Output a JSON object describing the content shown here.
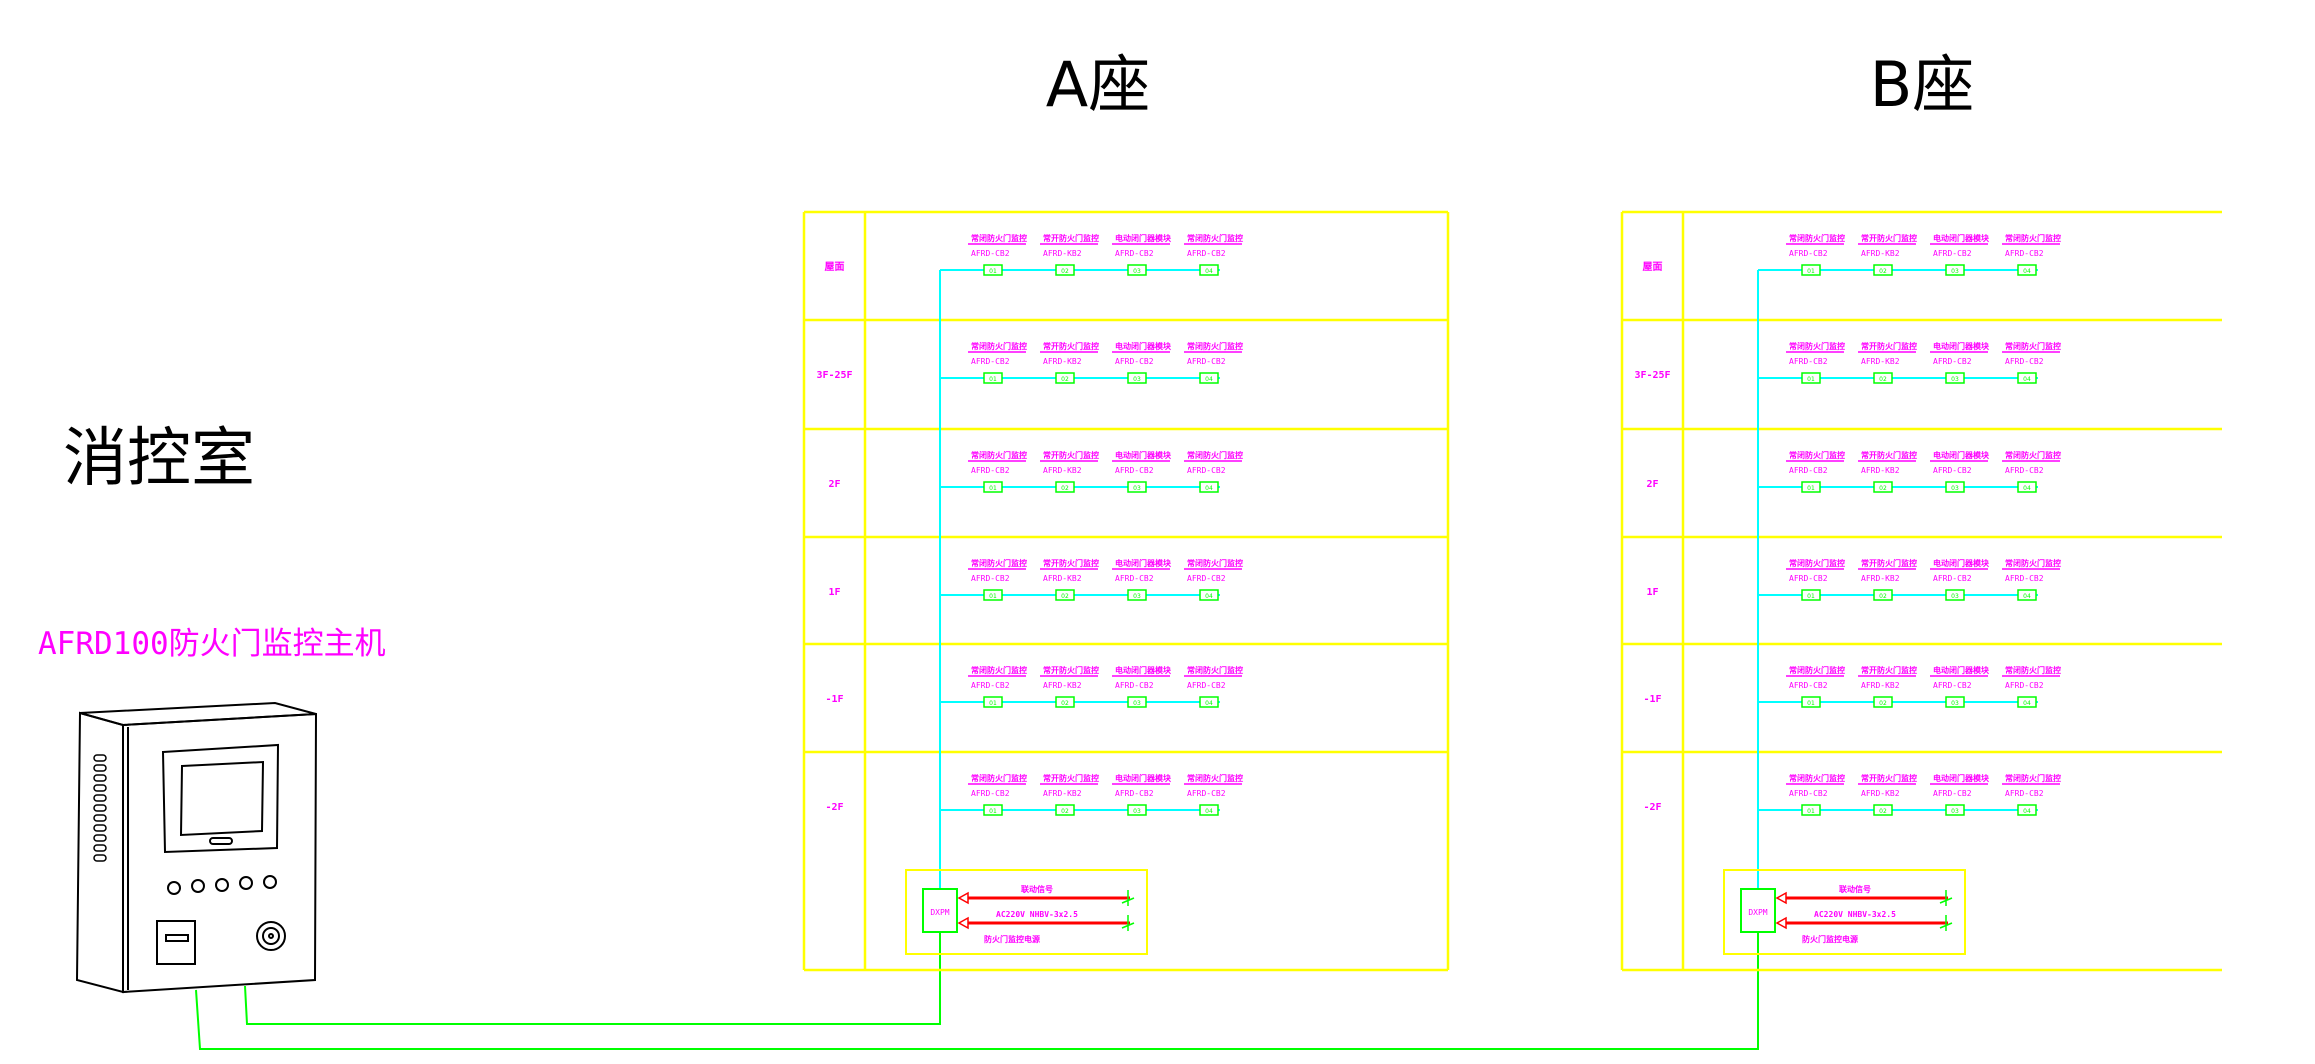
{
  "titles": {
    "building_a": "A座",
    "building_b": "B座",
    "control_room": "消控室",
    "host_name": "AFRD100防火门监控主机"
  },
  "colors": {
    "grid": "#ffff00",
    "bus": "#00ffff",
    "module": "#00ff00",
    "text": "#ff00ff",
    "power_line": "#ff0000",
    "cable": "#00ff00"
  },
  "buildings": [
    {
      "id": "a",
      "floors": [
        "屋面",
        "3F-25F",
        "2F",
        "1F",
        "-1F",
        "-2F"
      ],
      "devices": [
        {
          "name": "常闭防火门监控",
          "model": "AFRD-CB2",
          "code": "01"
        },
        {
          "name": "常开防火门监控",
          "model": "AFRD-KB2",
          "code": "02"
        },
        {
          "name": "电动闭门器模块",
          "model": "AFRD-CB2",
          "code": "03"
        },
        {
          "name": "常闭防火门监控",
          "model": "AFRD-CB2",
          "code": "04"
        }
      ],
      "power": {
        "module_label": "DXPM",
        "line1_label": "联动信号",
        "line2_label": "AC220V NHBV-3x2.5",
        "caption": "防火门监控电源"
      }
    },
    {
      "id": "b",
      "floors": [
        "屋面",
        "3F-25F",
        "2F",
        "1F",
        "-1F",
        "-2F"
      ],
      "devices": [
        {
          "name": "常闭防火门监控",
          "model": "AFRD-CB2",
          "code": "01"
        },
        {
          "name": "常开防火门监控",
          "model": "AFRD-KB2",
          "code": "02"
        },
        {
          "name": "电动闭门器模块",
          "model": "AFRD-CB2",
          "code": "03"
        },
        {
          "name": "常闭防火门监控",
          "model": "AFRD-CB2",
          "code": "04"
        }
      ],
      "power": {
        "module_label": "DXPM",
        "line1_label": "联动信号",
        "line2_label": "AC220V NHBV-3x2.5",
        "caption": "防火门监控电源"
      }
    }
  ]
}
